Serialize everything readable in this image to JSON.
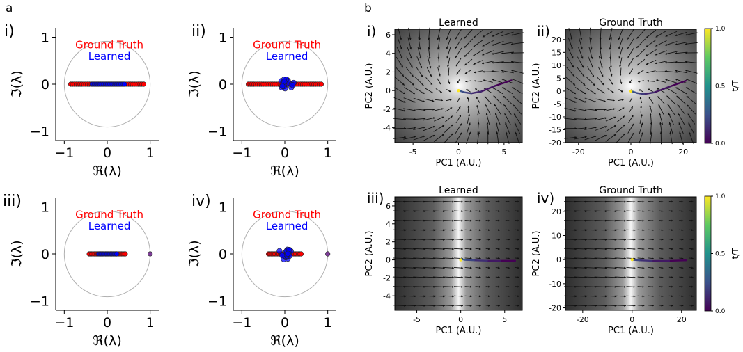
{
  "panel_a_label": "a",
  "panel_b_label": "b",
  "eigen_axes": {
    "xlabel": "ℜ(λ)",
    "ylabel": "ℑ(λ)",
    "xticks": [
      "−1",
      "0",
      "1"
    ],
    "yticks": [
      "1",
      "0",
      "−1"
    ]
  },
  "eigen_legend": {
    "ground_truth": "Ground Truth",
    "learned": "Learned"
  },
  "flow_axes": {
    "xlabel": "PC1 (A.U.)",
    "ylabel": "PC2 (A.U.)"
  },
  "colorbar": {
    "label": "t/T",
    "ticks": [
      "1.0",
      "0.5",
      "0.0"
    ]
  },
  "colors": {
    "ground_truth": "#ff0000",
    "learned": "#0000ff",
    "unit_circle": "#b0b0b0"
  },
  "chart_data": [
    {
      "type": "scatter",
      "panel": "a",
      "numeral": "i)",
      "unit_circle": true,
      "xlim": [
        -1.2,
        1.2
      ],
      "ylim": [
        -1.2,
        1.2
      ],
      "legend": [
        "Ground Truth",
        "Learned"
      ],
      "series": [
        {
          "name": "Ground Truth",
          "color": "#ff0000",
          "real_range": [
            -0.85,
            0.85
          ],
          "imag": 0,
          "count": 40
        },
        {
          "name": "Learned",
          "color": "#0000ff",
          "real_range": [
            -0.35,
            0.4
          ],
          "imag": 0,
          "count": 30
        }
      ]
    },
    {
      "type": "scatter",
      "panel": "a",
      "numeral": "ii)",
      "unit_circle": true,
      "xlim": [
        -1.2,
        1.2
      ],
      "ylim": [
        -1.2,
        1.2
      ],
      "legend": [
        "Ground Truth",
        "Learned"
      ],
      "series": [
        {
          "name": "Ground Truth",
          "color": "#ff0000",
          "real_range": [
            -0.85,
            0.85
          ],
          "imag": 0,
          "count": 40
        },
        {
          "name": "Learned",
          "color": "#0000ff",
          "cluster_center": [
            0.05,
            0
          ],
          "cluster_radius": 0.15,
          "count": 20
        }
      ]
    },
    {
      "type": "scatter",
      "panel": "a",
      "numeral": "iii)",
      "unit_circle": true,
      "xlim": [
        -1.2,
        1.2
      ],
      "ylim": [
        -1.2,
        1.2
      ],
      "legend": [
        "Ground Truth",
        "Learned"
      ],
      "series": [
        {
          "name": "Ground Truth",
          "color": "#ff0000",
          "real_range": [
            -0.42,
            0.42
          ],
          "imag": 0,
          "count": 30,
          "extra_point": [
            1.0,
            0
          ]
        },
        {
          "name": "Learned",
          "color": "#0000ff",
          "real_range": [
            -0.2,
            0.22
          ],
          "imag": 0,
          "count": 20
        }
      ]
    },
    {
      "type": "scatter",
      "panel": "a",
      "numeral": "iv)",
      "unit_circle": true,
      "xlim": [
        -1.2,
        1.2
      ],
      "ylim": [
        -1.2,
        1.2
      ],
      "legend": [
        "Ground Truth",
        "Learned"
      ],
      "series": [
        {
          "name": "Ground Truth",
          "color": "#ff0000",
          "real_range": [
            -0.38,
            0.38
          ],
          "imag": 0,
          "count": 26,
          "extra_point": [
            1.0,
            0
          ]
        },
        {
          "name": "Learned",
          "color": "#0000ff",
          "cluster_center": [
            0.0,
            0
          ],
          "cluster_radius": 0.15,
          "count": 20
        }
      ]
    },
    {
      "type": "heatmap",
      "panel": "b",
      "numeral": "i)",
      "title": "Learned",
      "xlim": [
        -7,
        7
      ],
      "ylim": [
        -5.6,
        6.6
      ],
      "xticks": [
        -5,
        0,
        5
      ],
      "yticks": [
        6,
        4,
        2,
        0,
        -2,
        -4
      ],
      "flow": "spiral",
      "trajectory": [
        [
          5.8,
          1.1
        ],
        [
          4.0,
          0.5
        ],
        [
          2.5,
          -0.1
        ],
        [
          1.4,
          -0.3
        ],
        [
          0.7,
          -0.2
        ],
        [
          0.2,
          -0.05
        ],
        [
          0.0,
          0.0
        ]
      ]
    },
    {
      "type": "heatmap",
      "panel": "b",
      "numeral": "ii)",
      "title": "Ground Truth",
      "xlim": [
        -25,
        25
      ],
      "ylim": [
        -20,
        24
      ],
      "xticks": [
        -20,
        0,
        20
      ],
      "yticks": [
        20,
        15,
        10,
        5,
        0,
        -5,
        -10,
        -15,
        -20
      ],
      "flow": "spiral",
      "colorbar": true,
      "trajectory": [
        [
          21,
          4.0
        ],
        [
          15,
          1.8
        ],
        [
          9,
          -0.5
        ],
        [
          5,
          -1.2
        ],
        [
          2.5,
          -0.8
        ],
        [
          0.7,
          -0.2
        ],
        [
          0.0,
          0.0
        ]
      ]
    },
    {
      "type": "heatmap",
      "panel": "b",
      "numeral": "iii)",
      "title": "Learned",
      "xlim": [
        -7.5,
        7
      ],
      "ylim": [
        -5.6,
        7
      ],
      "xticks": [
        -5,
        0,
        5
      ],
      "yticks": [
        6,
        4,
        2,
        0,
        -2,
        -4
      ],
      "flow": "line",
      "trajectory": [
        [
          6.2,
          -0.1
        ],
        [
          4.5,
          -0.1
        ],
        [
          3.0,
          -0.1
        ],
        [
          1.5,
          -0.05
        ],
        [
          0.5,
          0.0
        ],
        [
          0.0,
          0.1
        ]
      ]
    },
    {
      "type": "heatmap",
      "panel": "b",
      "numeral": "iv)",
      "title": "Ground Truth",
      "xlim": [
        -27,
        26
      ],
      "ylim": [
        -21,
        26
      ],
      "xticks": [
        -20,
        0,
        20
      ],
      "yticks": [
        20,
        10,
        0,
        -10,
        -20
      ],
      "flow": "line",
      "colorbar": true,
      "trajectory": [
        [
          22,
          -0.3
        ],
        [
          15,
          -0.5
        ],
        [
          8,
          -0.5
        ],
        [
          3,
          -0.3
        ],
        [
          0.5,
          -0.1
        ],
        [
          0.0,
          0.0
        ]
      ]
    }
  ]
}
